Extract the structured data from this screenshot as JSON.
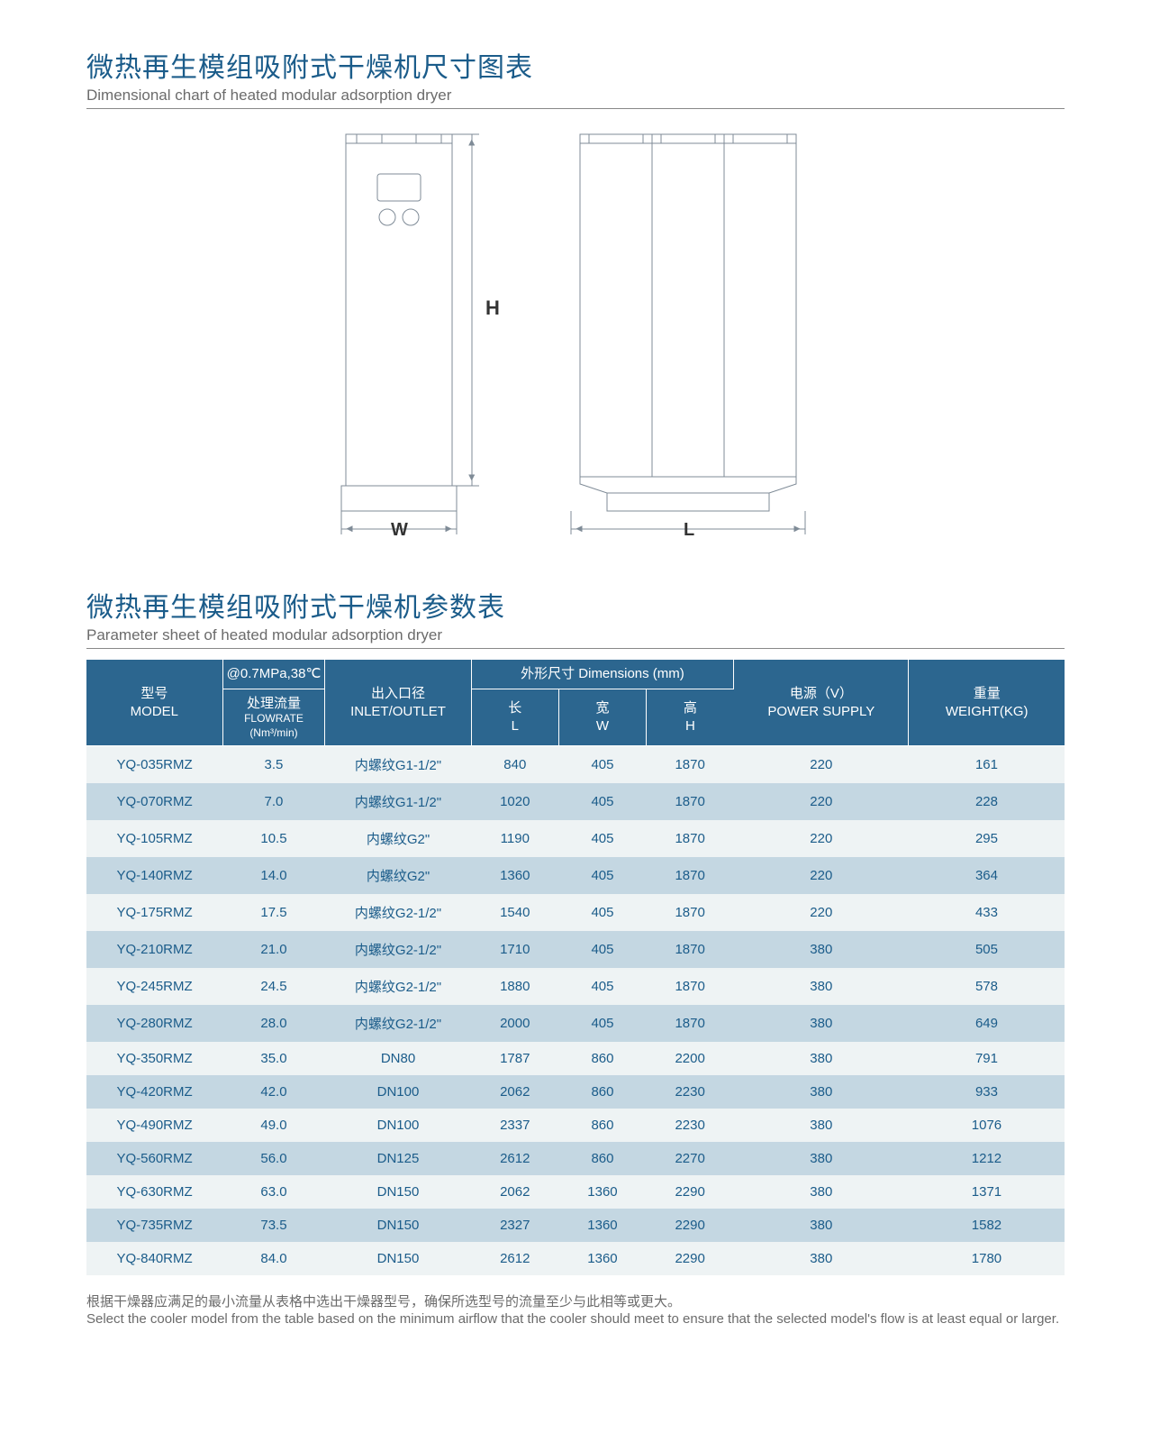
{
  "dimensional": {
    "title_cn": "微热再生模组吸附式干燥机尺寸图表",
    "title_en": "Dimensional chart of heated modular adsorption dryer",
    "label_H": "H",
    "label_W": "W",
    "label_L": "L"
  },
  "parameter": {
    "title_cn": "微热再生模组吸附式干燥机参数表",
    "title_en": "Parameter sheet of heated modular adsorption dryer"
  },
  "headers": {
    "model_cn": "型号",
    "model_en": "MODEL",
    "condition": "@0.7MPa,38℃",
    "flowrate_cn": "处理流量",
    "flowrate_en": "FLOWRATE",
    "flowrate_unit": "(Nm³/min)",
    "inlet_cn": "出入口径",
    "inlet_en": "INLET/OUTLET",
    "dims_label": "外形尺寸 Dimensions (mm)",
    "len_cn": "长",
    "len_en": "L",
    "wid_cn": "宽",
    "wid_en": "W",
    "hei_cn": "高",
    "hei_en": "H",
    "power_cn": "电源（V）",
    "power_en": "POWER SUPPLY",
    "weight_cn": "重量",
    "weight_en": "WEIGHT(KG)"
  },
  "rows": [
    {
      "model": "YQ-035RMZ",
      "flow": "3.5",
      "inlet": "内螺纹G1-1/2\"",
      "L": "840",
      "W": "405",
      "H": "1870",
      "power": "220",
      "weight": "161"
    },
    {
      "model": "YQ-070RMZ",
      "flow": "7.0",
      "inlet": "内螺纹G1-1/2\"",
      "L": "1020",
      "W": "405",
      "H": "1870",
      "power": "220",
      "weight": "228"
    },
    {
      "model": "YQ-105RMZ",
      "flow": "10.5",
      "inlet": "内螺纹G2\"",
      "L": "1190",
      "W": "405",
      "H": "1870",
      "power": "220",
      "weight": "295"
    },
    {
      "model": "YQ-140RMZ",
      "flow": "14.0",
      "inlet": "内螺纹G2\"",
      "L": "1360",
      "W": "405",
      "H": "1870",
      "power": "220",
      "weight": "364"
    },
    {
      "model": "YQ-175RMZ",
      "flow": "17.5",
      "inlet": "内螺纹G2-1/2\"",
      "L": "1540",
      "W": "405",
      "H": "1870",
      "power": "220",
      "weight": "433"
    },
    {
      "model": "YQ-210RMZ",
      "flow": "21.0",
      "inlet": "内螺纹G2-1/2\"",
      "L": "1710",
      "W": "405",
      "H": "1870",
      "power": "380",
      "weight": "505"
    },
    {
      "model": "YQ-245RMZ",
      "flow": "24.5",
      "inlet": "内螺纹G2-1/2\"",
      "L": "1880",
      "W": "405",
      "H": "1870",
      "power": "380",
      "weight": "578"
    },
    {
      "model": "YQ-280RMZ",
      "flow": "28.0",
      "inlet": "内螺纹G2-1/2\"",
      "L": "2000",
      "W": "405",
      "H": "1870",
      "power": "380",
      "weight": "649"
    },
    {
      "model": "YQ-350RMZ",
      "flow": "35.0",
      "inlet": "DN80",
      "L": "1787",
      "W": "860",
      "H": "2200",
      "power": "380",
      "weight": "791"
    },
    {
      "model": "YQ-420RMZ",
      "flow": "42.0",
      "inlet": "DN100",
      "L": "2062",
      "W": "860",
      "H": "2230",
      "power": "380",
      "weight": "933"
    },
    {
      "model": "YQ-490RMZ",
      "flow": "49.0",
      "inlet": "DN100",
      "L": "2337",
      "W": "860",
      "H": "2230",
      "power": "380",
      "weight": "1076"
    },
    {
      "model": "YQ-560RMZ",
      "flow": "56.0",
      "inlet": "DN125",
      "L": "2612",
      "W": "860",
      "H": "2270",
      "power": "380",
      "weight": "1212"
    },
    {
      "model": "YQ-630RMZ",
      "flow": "63.0",
      "inlet": "DN150",
      "L": "2062",
      "W": "1360",
      "H": "2290",
      "power": "380",
      "weight": "1371"
    },
    {
      "model": "YQ-735RMZ",
      "flow": "73.5",
      "inlet": "DN150",
      "L": "2327",
      "W": "1360",
      "H": "2290",
      "power": "380",
      "weight": "1582"
    },
    {
      "model": "YQ-840RMZ",
      "flow": "84.0",
      "inlet": "DN150",
      "L": "2612",
      "W": "1360",
      "H": "2290",
      "power": "380",
      "weight": "1780"
    }
  ],
  "footnote": {
    "cn": "根据干燥器应满足的最小流量从表格中选出干燥器型号，确保所选型号的流量至少与此相等或更大。",
    "en": "Select the cooler model from the table based on the minimum airflow that the cooler should meet to ensure that the selected model's flow is at least equal or larger."
  },
  "colors": {
    "header_bg": "#2c668f",
    "row_light": "#eef3f4",
    "row_dark": "#c4d7e2",
    "title_color": "#1b5c8a",
    "text_grey": "#6b6b6b",
    "diagram_stroke": "#7f8b97"
  },
  "table_col_widths": [
    "14%",
    "10%",
    "15%",
    "9%",
    "9%",
    "9%",
    "18%",
    "16%"
  ]
}
